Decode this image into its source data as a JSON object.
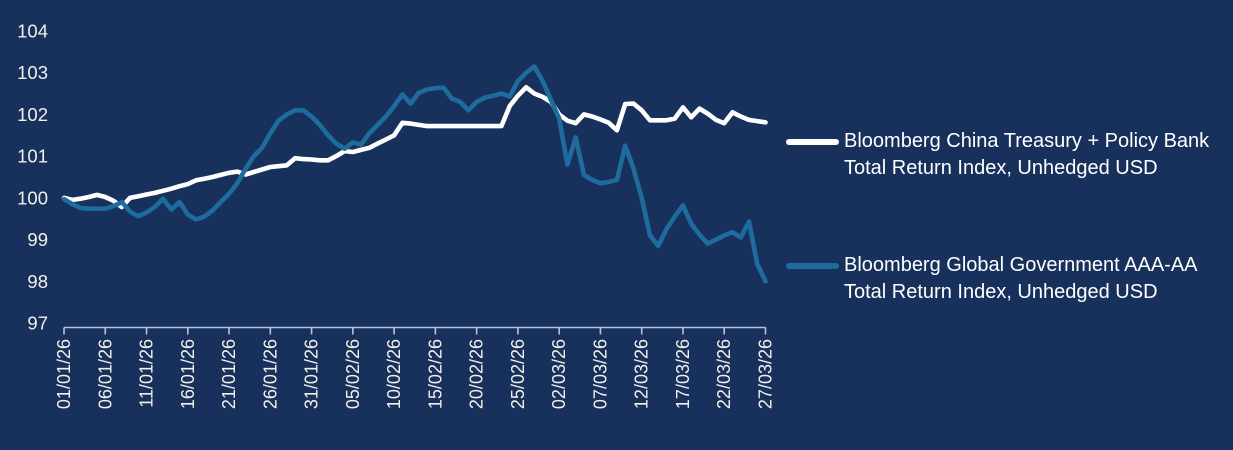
{
  "colors": {
    "background": "#17315c",
    "white_series": "#ffffff",
    "blue_series": "#1e6c9e",
    "axis": "#b5c4de",
    "tick_label": "#f3efe9",
    "legend_text": "#ffffff"
  },
  "legend": {
    "items": [
      {
        "swatch_color": "#ffffff",
        "lines": [
          "Bloomberg China Treasury + Policy Bank",
          "Total Return Index, Unhedged USD"
        ]
      },
      {
        "swatch_color": "#1e6c9e",
        "lines": [
          "Bloomberg Global Government AAA-AA",
          "Total Return Index, Unhedged USD"
        ]
      }
    ]
  },
  "chart_data": {
    "type": "line",
    "title": "",
    "x_start": "01/01/26",
    "x_end": "27/03/26",
    "x_frequency": "daily",
    "x_tick_labels": [
      "01/01/26",
      "06/01/26",
      "11/01/26",
      "16/01/26",
      "21/01/26",
      "26/01/26",
      "31/01/26",
      "05/02/26",
      "10/02/26",
      "15/02/26",
      "20/02/26",
      "25/02/26",
      "02/03/26",
      "07/03/26",
      "12/03/26",
      "17/03/26",
      "22/03/26",
      "27/03/26"
    ],
    "yticks": [
      104,
      103,
      102,
      101,
      100,
      99,
      98,
      97
    ],
    "ylim": [
      97,
      104
    ],
    "grid": false,
    "legend_position": "right",
    "series": [
      {
        "name": "Bloomberg China Treasury + Policy Bank Total Return Index, Unhedged USD",
        "color": "#ffffff",
        "values": [
          100.0,
          99.95,
          99.98,
          100.02,
          100.07,
          100.02,
          99.93,
          99.78,
          100.0,
          100.04,
          100.08,
          100.12,
          100.17,
          100.22,
          100.28,
          100.33,
          100.42,
          100.46,
          100.5,
          100.55,
          100.6,
          100.63,
          100.56,
          100.62,
          100.68,
          100.74,
          100.76,
          100.78,
          100.95,
          100.93,
          100.92,
          100.9,
          100.9,
          101.0,
          101.12,
          101.1,
          101.15,
          101.2,
          101.3,
          101.4,
          101.5,
          101.8,
          101.78,
          101.75,
          101.72,
          101.72,
          101.72,
          101.72,
          101.72,
          101.72,
          101.72,
          101.72,
          101.72,
          101.72,
          102.2,
          102.45,
          102.65,
          102.5,
          102.42,
          102.3,
          102.0,
          101.85,
          101.79,
          102.0,
          101.95,
          101.88,
          101.8,
          101.62,
          102.25,
          102.26,
          102.1,
          101.86,
          101.86,
          101.86,
          101.9,
          102.17,
          101.93,
          102.14,
          102.02,
          101.87,
          101.79,
          102.05,
          101.95,
          101.87,
          101.84,
          101.81
        ]
      },
      {
        "name": "Bloomberg Global Government AAA-AA Total Return Index, Unhedged USD",
        "color": "#1e6c9e",
        "values": [
          99.97,
          99.85,
          99.76,
          99.74,
          99.74,
          99.74,
          99.8,
          99.9,
          99.67,
          99.56,
          99.65,
          99.78,
          99.98,
          99.72,
          99.9,
          99.6,
          99.48,
          99.55,
          99.7,
          99.9,
          100.1,
          100.35,
          100.7,
          101.0,
          101.2,
          101.55,
          101.85,
          102.0,
          102.1,
          102.1,
          101.95,
          101.75,
          101.5,
          101.3,
          101.18,
          101.33,
          101.28,
          101.55,
          101.75,
          101.95,
          102.2,
          102.48,
          102.26,
          102.52,
          102.6,
          102.63,
          102.64,
          102.38,
          102.3,
          102.1,
          102.3,
          102.4,
          102.45,
          102.5,
          102.43,
          102.8,
          103.0,
          103.15,
          102.8,
          102.35,
          101.9,
          100.8,
          101.45,
          100.55,
          100.43,
          100.35,
          100.38,
          100.43,
          101.25,
          100.7,
          100.0,
          99.1,
          98.85,
          99.25,
          99.55,
          99.82,
          99.38,
          99.12,
          98.9,
          99.0,
          99.1,
          99.18,
          99.05,
          99.43,
          98.42,
          98.0
        ]
      }
    ]
  }
}
